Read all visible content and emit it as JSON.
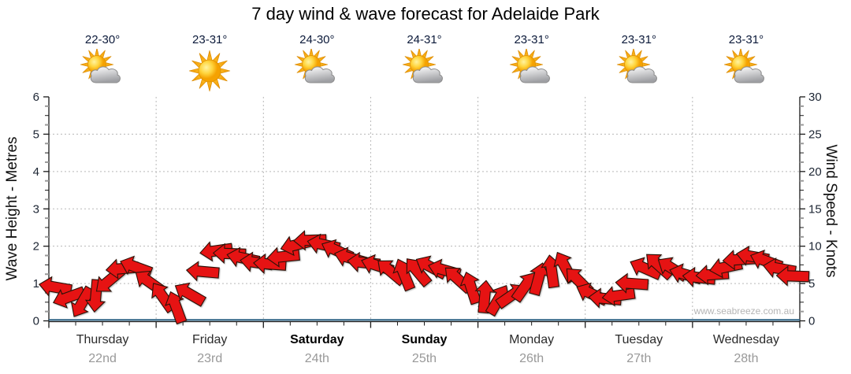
{
  "title": "7 day wind & wave forecast for Adelaide Park",
  "watermark": "www.seabreeze.com.au",
  "days": [
    {
      "name": "Thursday",
      "date": "22nd",
      "temp": "22-30°",
      "icon": "sun-cloud",
      "bold": false
    },
    {
      "name": "Friday",
      "date": "23rd",
      "temp": "23-31°",
      "icon": "sun",
      "bold": false
    },
    {
      "name": "Saturday",
      "date": "24th",
      "temp": "24-30°",
      "icon": "sun-cloud",
      "bold": true
    },
    {
      "name": "Sunday",
      "date": "25th",
      "temp": "24-31°",
      "icon": "sun-cloud",
      "bold": true
    },
    {
      "name": "Monday",
      "date": "26th",
      "temp": "23-31°",
      "icon": "sun-cloud",
      "bold": false
    },
    {
      "name": "Tuesday",
      "date": "27th",
      "temp": "23-31°",
      "icon": "sun-cloud",
      "bold": false
    },
    {
      "name": "Wednesday",
      "date": "28th",
      "temp": "23-31°",
      "icon": "sun-cloud",
      "bold": false
    }
  ],
  "chart_data": {
    "type": "scatter",
    "subtype": "wind-direction-arrows-over-time",
    "title": "7 day wind & wave forecast for Adelaide Park",
    "left_axis": {
      "label": "Wave Height - Metres",
      "min": 0,
      "max": 6,
      "ticks": [
        0,
        1,
        2,
        3,
        4,
        5,
        6
      ]
    },
    "right_axis": {
      "label": "Wind Speed - Knots",
      "min": 0,
      "max": 30,
      "ticks": [
        0,
        5,
        10,
        15,
        20,
        25,
        30
      ]
    },
    "x_categories": [
      "Thursday 22nd",
      "Friday 23rd",
      "Saturday 24th",
      "Sunday 25th",
      "Monday 26th",
      "Tuesday 27th",
      "Wednesday 28th"
    ],
    "points_per_day": 8,
    "grid": true,
    "legend": false,
    "series": [
      {
        "name": "Wind speed (knots, red direction arrows)",
        "values": [
          4.5,
          3.2,
          2.5,
          3.4,
          5.4,
          7.0,
          7.2,
          5.2,
          3.2,
          1.8,
          3.6,
          6.6,
          9.4,
          9.0,
          8.4,
          7.8,
          7.6,
          8.6,
          10.2,
          10.8,
          10.2,
          9.4,
          8.4,
          7.8,
          7.4,
          6.6,
          6.2,
          6.6,
          7.2,
          6.8,
          5.6,
          4.4,
          3.2,
          2.8,
          3.4,
          4.6,
          5.6,
          6.6,
          7.2,
          5.4,
          3.6,
          3.0,
          3.4,
          5.0,
          7.0,
          7.4,
          7.0,
          6.2,
          5.8,
          6.2,
          7.2,
          8.2,
          8.6,
          8.0,
          7.0,
          6.0
        ],
        "directions_deg": [
          190,
          160,
          120,
          95,
          140,
          175,
          200,
          215,
          235,
          250,
          210,
          185,
          172,
          182,
          192,
          188,
          184,
          174,
          166,
          178,
          192,
          204,
          196,
          186,
          198,
          220,
          248,
          230,
          208,
          196,
          222,
          252,
          275,
          300,
          325,
          305,
          285,
          262,
          242,
          225,
          205,
          185,
          172,
          184,
          204,
          222,
          212,
          196,
          186,
          176,
          168,
          176,
          190,
          200,
          190,
          182
        ]
      },
      {
        "name": "Wave height (metres, blue line)",
        "note": "flat line at approximately zero metres across all 7 days",
        "values": [
          0.05,
          0.05,
          0.05,
          0.05,
          0.05,
          0.05,
          0.05
        ]
      }
    ]
  },
  "colors": {
    "arrow_fill": "#e61313",
    "arrow_outline": "#2b1208",
    "wave_line": "#2e6486",
    "axis": "#1a1a1a",
    "grid": "#b8b8b8",
    "tick_label": "#1c2533"
  }
}
